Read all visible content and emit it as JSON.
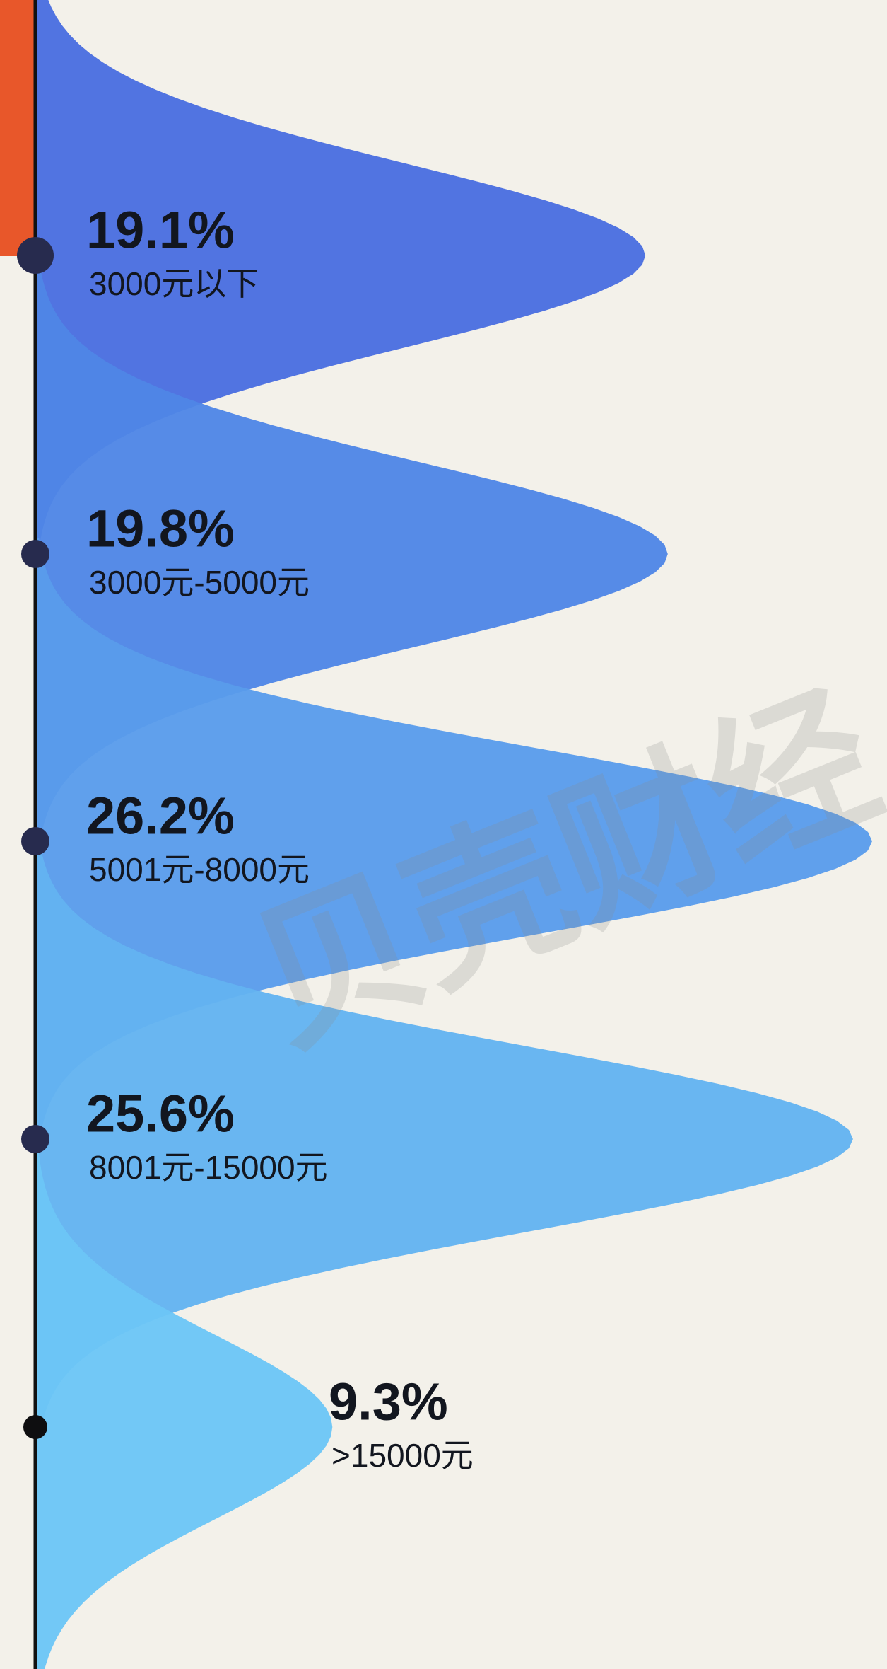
{
  "chart_data": {
    "type": "ridge",
    "categories": [
      "3000元以下",
      "3000元-5000元",
      "5001元-8000元",
      "8001元-15000元",
      ">15000元"
    ],
    "values": [
      19.1,
      19.8,
      26.2,
      25.6,
      9.3
    ],
    "value_labels": [
      "19.1%",
      "19.8%",
      "26.2%",
      "25.6%",
      "9.3%"
    ],
    "colors": [
      "#4a6ee0",
      "#4f86e6",
      "#5a9ceb",
      "#63b3f0",
      "#6cc6f6"
    ],
    "watermark": "贝壳财经"
  }
}
